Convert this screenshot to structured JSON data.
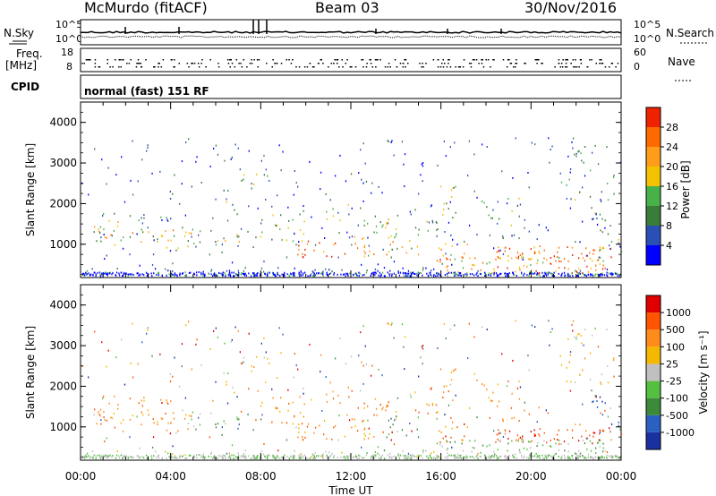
{
  "header": {
    "station": "McMurdo (fitACF)",
    "beam": "Beam 03",
    "date": "30/Nov/2016"
  },
  "top_panels": {
    "nsky_label": "N.Sky",
    "nsearch_label": "N.Search",
    "nsky_ticks": [
      "10^5",
      "10^0"
    ],
    "nsearch_ticks": [
      "10^5",
      "10^0"
    ],
    "freq_label": "Freq.",
    "freq_unit": "[MHz]",
    "freq_ticks": [
      "18",
      "8"
    ],
    "nave_label": "Nave",
    "nave_ticks": [
      "60",
      "0"
    ],
    "cpid_label": "CPID",
    "cpid_text": "normal (fast) 151 RF"
  },
  "chart_data": [
    {
      "type": "heatmap",
      "panel": "power",
      "ylabel": "Slant Range [km]",
      "xlabel": "",
      "xlim": [
        "00:00",
        "24:00"
      ],
      "ylim": [
        180,
        4500
      ],
      "x_ticks": [
        "00:00",
        "04:00",
        "08:00",
        "12:00",
        "16:00",
        "20:00",
        "00:00"
      ],
      "y_ticks": [
        "1000",
        "2000",
        "3000",
        "4000"
      ],
      "colorbar": {
        "label": "Power [dB]",
        "ticks": [
          "4",
          "8",
          "12",
          "16",
          "20",
          "24",
          "28"
        ],
        "colors": [
          "#0000ff",
          "#2a4fb5",
          "#3a7d3a",
          "#47b24a",
          "#f2c200",
          "#ff9c1a",
          "#ff6a00",
          "#ee2200"
        ]
      }
    },
    {
      "type": "heatmap",
      "panel": "velocity",
      "ylabel": "Slant Range [km]",
      "xlabel": "Time UT",
      "xlim": [
        "00:00",
        "24:00"
      ],
      "ylim": [
        180,
        4500
      ],
      "x_ticks": [
        "00:00",
        "04:00",
        "08:00",
        "12:00",
        "16:00",
        "20:00",
        "00:00"
      ],
      "y_ticks": [
        "1000",
        "2000",
        "3000",
        "4000"
      ],
      "colorbar": {
        "label": "Velocity [m s⁻¹]",
        "ticks": [
          "1000",
          "500",
          "100",
          "25",
          "-25",
          "-100",
          "-500",
          "-1000"
        ],
        "colors": [
          "#1a2fa0",
          "#2b5fc0",
          "#3a8a3a",
          "#55c040",
          "#c0c0c0",
          "#f5b800",
          "#ff8c1a",
          "#ff5500",
          "#e00000"
        ]
      }
    }
  ]
}
